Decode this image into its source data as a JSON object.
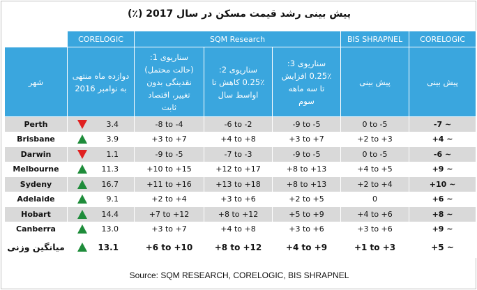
{
  "title": "پیش بینی رشد قیمت مسکن در سال 2017 (٪)",
  "source": "Source: SQM RESEARCH, CORELOGIC, BIS SHRAPNEL",
  "groups": {
    "g1": "CORELOGIC",
    "g2": "SQM Research",
    "g3": "BIS SHRAPNEL",
    "g4": "CORELOGIC"
  },
  "columns": {
    "city": "شهر",
    "actual": "دوازده ماه منتهی به نوامبر 2016",
    "s1": "سناریوی 1: (حالت محتمل) نقدینگی بدون تغییر، اقتصاد ثابت",
    "s2": "سناریوی 2: ٪0.25 کاهش تا اواسط سال",
    "s3": "سناریوی 3: ٪0.25 افزایش تا سه ماهه سوم",
    "bis": "پیش بینی",
    "cl": "پیش بینی"
  },
  "chart_data": {
    "type": "table",
    "title": "پیش بینی رشد قیمت مسکن در سال 2017 (٪)",
    "rows": [
      {
        "city": "Perth",
        "trend": "down",
        "actual": "3.4",
        "s1": "-8 to -4",
        "s2": "-6 to -2",
        "s3": "-9 to -5",
        "bis": "0 to -5",
        "cl": "-7 ~"
      },
      {
        "city": "Brisbane",
        "trend": "up",
        "actual": "3.9",
        "s1": "+3 to +7",
        "s2": "+4 to +8",
        "s3": "+3 to +7",
        "bis": "+2 to +3",
        "cl": "+4 ~"
      },
      {
        "city": "Darwin",
        "trend": "down",
        "actual": "1.1",
        "s1": "-9 to -5",
        "s2": "-7 to -3",
        "s3": "-9 to -5",
        "bis": "0 to -5",
        "cl": "-6 ~"
      },
      {
        "city": "Melbourne",
        "trend": "up",
        "actual": "11.3",
        "s1": "+10 to +15",
        "s2": "+12 to +17",
        "s3": "+8 to +13",
        "bis": "+4 to +5",
        "cl": "+9 ~"
      },
      {
        "city": "Sydeny",
        "trend": "up",
        "actual": "16.7",
        "s1": "+11 to +16",
        "s2": "+13 to +18",
        "s3": "+8 to +13",
        "bis": "+2 to +4",
        "cl": "+10 ~"
      },
      {
        "city": "Adelaide",
        "trend": "up",
        "actual": "9.1",
        "s1": "+2 to +4",
        "s2": "+3 to +6",
        "s3": "+2 to +5",
        "bis": "0",
        "cl": "+6 ~"
      },
      {
        "city": "Hobart",
        "trend": "up",
        "actual": "14.4",
        "s1": "+7 to +12",
        "s2": "+8 to +12",
        "s3": "+5 to +9",
        "bis": "+4 to +6",
        "cl": "+8 ~"
      },
      {
        "city": "Canberra",
        "trend": "up",
        "actual": "13.0",
        "s1": "+3 to +7",
        "s2": "+4 to +8",
        "s3": "+3 to +6",
        "bis": "+3 to +6",
        "cl": "+9 ~"
      }
    ],
    "total": {
      "city": "میانگین وزنی",
      "trend": "up",
      "actual": "13.1",
      "s1": "+6 to +10",
      "s2": "+8 to +12",
      "s3": "+4 to +9",
      "bis": "+1 to +3",
      "cl": "+5 ~"
    }
  }
}
